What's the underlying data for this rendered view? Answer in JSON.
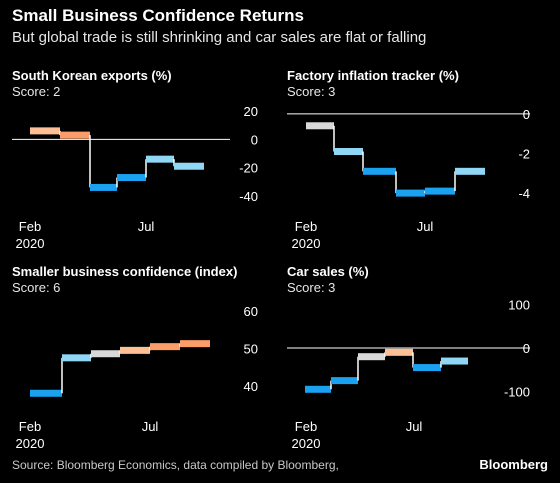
{
  "header": {
    "title": "Small Business Confidence Returns",
    "subtitle": "But global trade is still shrinking and car sales are flat or falling"
  },
  "footer": {
    "source": "Source: Bloomberg Economics, data compiled by Bloomberg,",
    "brand": "Bloomberg"
  },
  "colors": {
    "dark_blue": "#1aa1f0",
    "light_blue": "#90d7f6",
    "grey": "#d9d9d9",
    "light_orange": "#ffbf94",
    "orange": "#fa9d69",
    "axis_line": "#ffffff",
    "background": "#000000"
  },
  "chart_data": [
    {
      "type": "line",
      "step": true,
      "title": "South Korean exports (%)",
      "score": "Score: 2",
      "x_ticks": [
        "Feb\n2020",
        "Jul"
      ],
      "y_ticks": [
        "20",
        "0",
        "-20",
        "-40"
      ],
      "y_tick_values": [
        20,
        0,
        -20,
        -40
      ],
      "ylim": [
        -45,
        25
      ],
      "zero_line": -8,
      "segments": [
        {
          "start": 0,
          "end": 1,
          "value": 6,
          "color": "light_orange"
        },
        {
          "start": 1,
          "end": 2,
          "value": 3,
          "color": "orange"
        },
        {
          "start": 2,
          "end": 3,
          "value": -34,
          "color": "dark_blue"
        },
        {
          "start": 3,
          "end": 4,
          "value": -27,
          "color": "dark_blue"
        },
        {
          "start": 4,
          "end": 5,
          "value": -14,
          "color": "light_blue"
        },
        {
          "start": 5,
          "end": 6,
          "value": -19,
          "color": "light_blue"
        }
      ]
    },
    {
      "type": "line",
      "step": true,
      "title": "Factory inflation tracker (%)",
      "score": "Score: 3",
      "x_ticks": [
        "Feb\n2020",
        "Jul"
      ],
      "y_ticks": [
        "0",
        "-2",
        "-4"
      ],
      "y_tick_values": [
        0,
        -2,
        -4
      ],
      "ylim": [
        -4.5,
        0.5
      ],
      "zero_line": -0.5,
      "segments": [
        {
          "start": 0,
          "end": 1,
          "value": -0.6,
          "color": "grey"
        },
        {
          "start": 1,
          "end": 2,
          "value": -1.9,
          "color": "light_blue"
        },
        {
          "start": 2,
          "end": 3,
          "value": -2.9,
          "color": "dark_blue"
        },
        {
          "start": 3,
          "end": 4,
          "value": -4.0,
          "color": "dark_blue"
        },
        {
          "start": 4,
          "end": 5,
          "value": -3.9,
          "color": "dark_blue"
        },
        {
          "start": 5,
          "end": 6,
          "value": -2.9,
          "color": "light_blue"
        }
      ]
    },
    {
      "type": "line",
      "step": true,
      "title": "Smaller business confidence (index)",
      "score": "Score: 6",
      "x_ticks": [
        "Feb\n2020",
        "Jul"
      ],
      "y_ticks": [
        "60",
        "50",
        "40"
      ],
      "y_tick_values": [
        60,
        50,
        40
      ],
      "ylim": [
        37,
        63
      ],
      "zero_line": null,
      "segments": [
        {
          "start": 0,
          "end": 1,
          "value": 38,
          "color": "dark_blue"
        },
        {
          "start": 1,
          "end": 2,
          "value": 47.5,
          "color": "light_blue"
        },
        {
          "start": 2,
          "end": 3,
          "value": 48.6,
          "color": "grey"
        },
        {
          "start": 3,
          "end": 4,
          "value": 49.5,
          "color": "light_orange"
        },
        {
          "start": 4,
          "end": 5,
          "value": 50.5,
          "color": "orange"
        },
        {
          "start": 5,
          "end": 6,
          "value": 51.3,
          "color": "orange"
        }
      ]
    },
    {
      "type": "line",
      "step": true,
      "title": "Car sales (%)",
      "score": "Score: 3",
      "x_ticks": [
        "Feb\n2020",
        "Jul"
      ],
      "y_ticks": [
        "100",
        "0",
        "-100"
      ],
      "y_tick_values": [
        100,
        0,
        -100
      ],
      "ylim": [
        -115,
        115
      ],
      "zero_line": -20,
      "segments": [
        {
          "start": 0,
          "end": 1,
          "value": -95,
          "color": "dark_blue"
        },
        {
          "start": 1,
          "end": 2,
          "value": -75,
          "color": "dark_blue"
        },
        {
          "start": 2,
          "end": 3,
          "value": -20,
          "color": "grey"
        },
        {
          "start": 3,
          "end": 4,
          "value": -10,
          "color": "light_orange"
        },
        {
          "start": 4,
          "end": 5,
          "value": -45,
          "color": "dark_blue"
        },
        {
          "start": 5,
          "end": 6,
          "value": -30,
          "color": "light_blue"
        }
      ]
    }
  ]
}
